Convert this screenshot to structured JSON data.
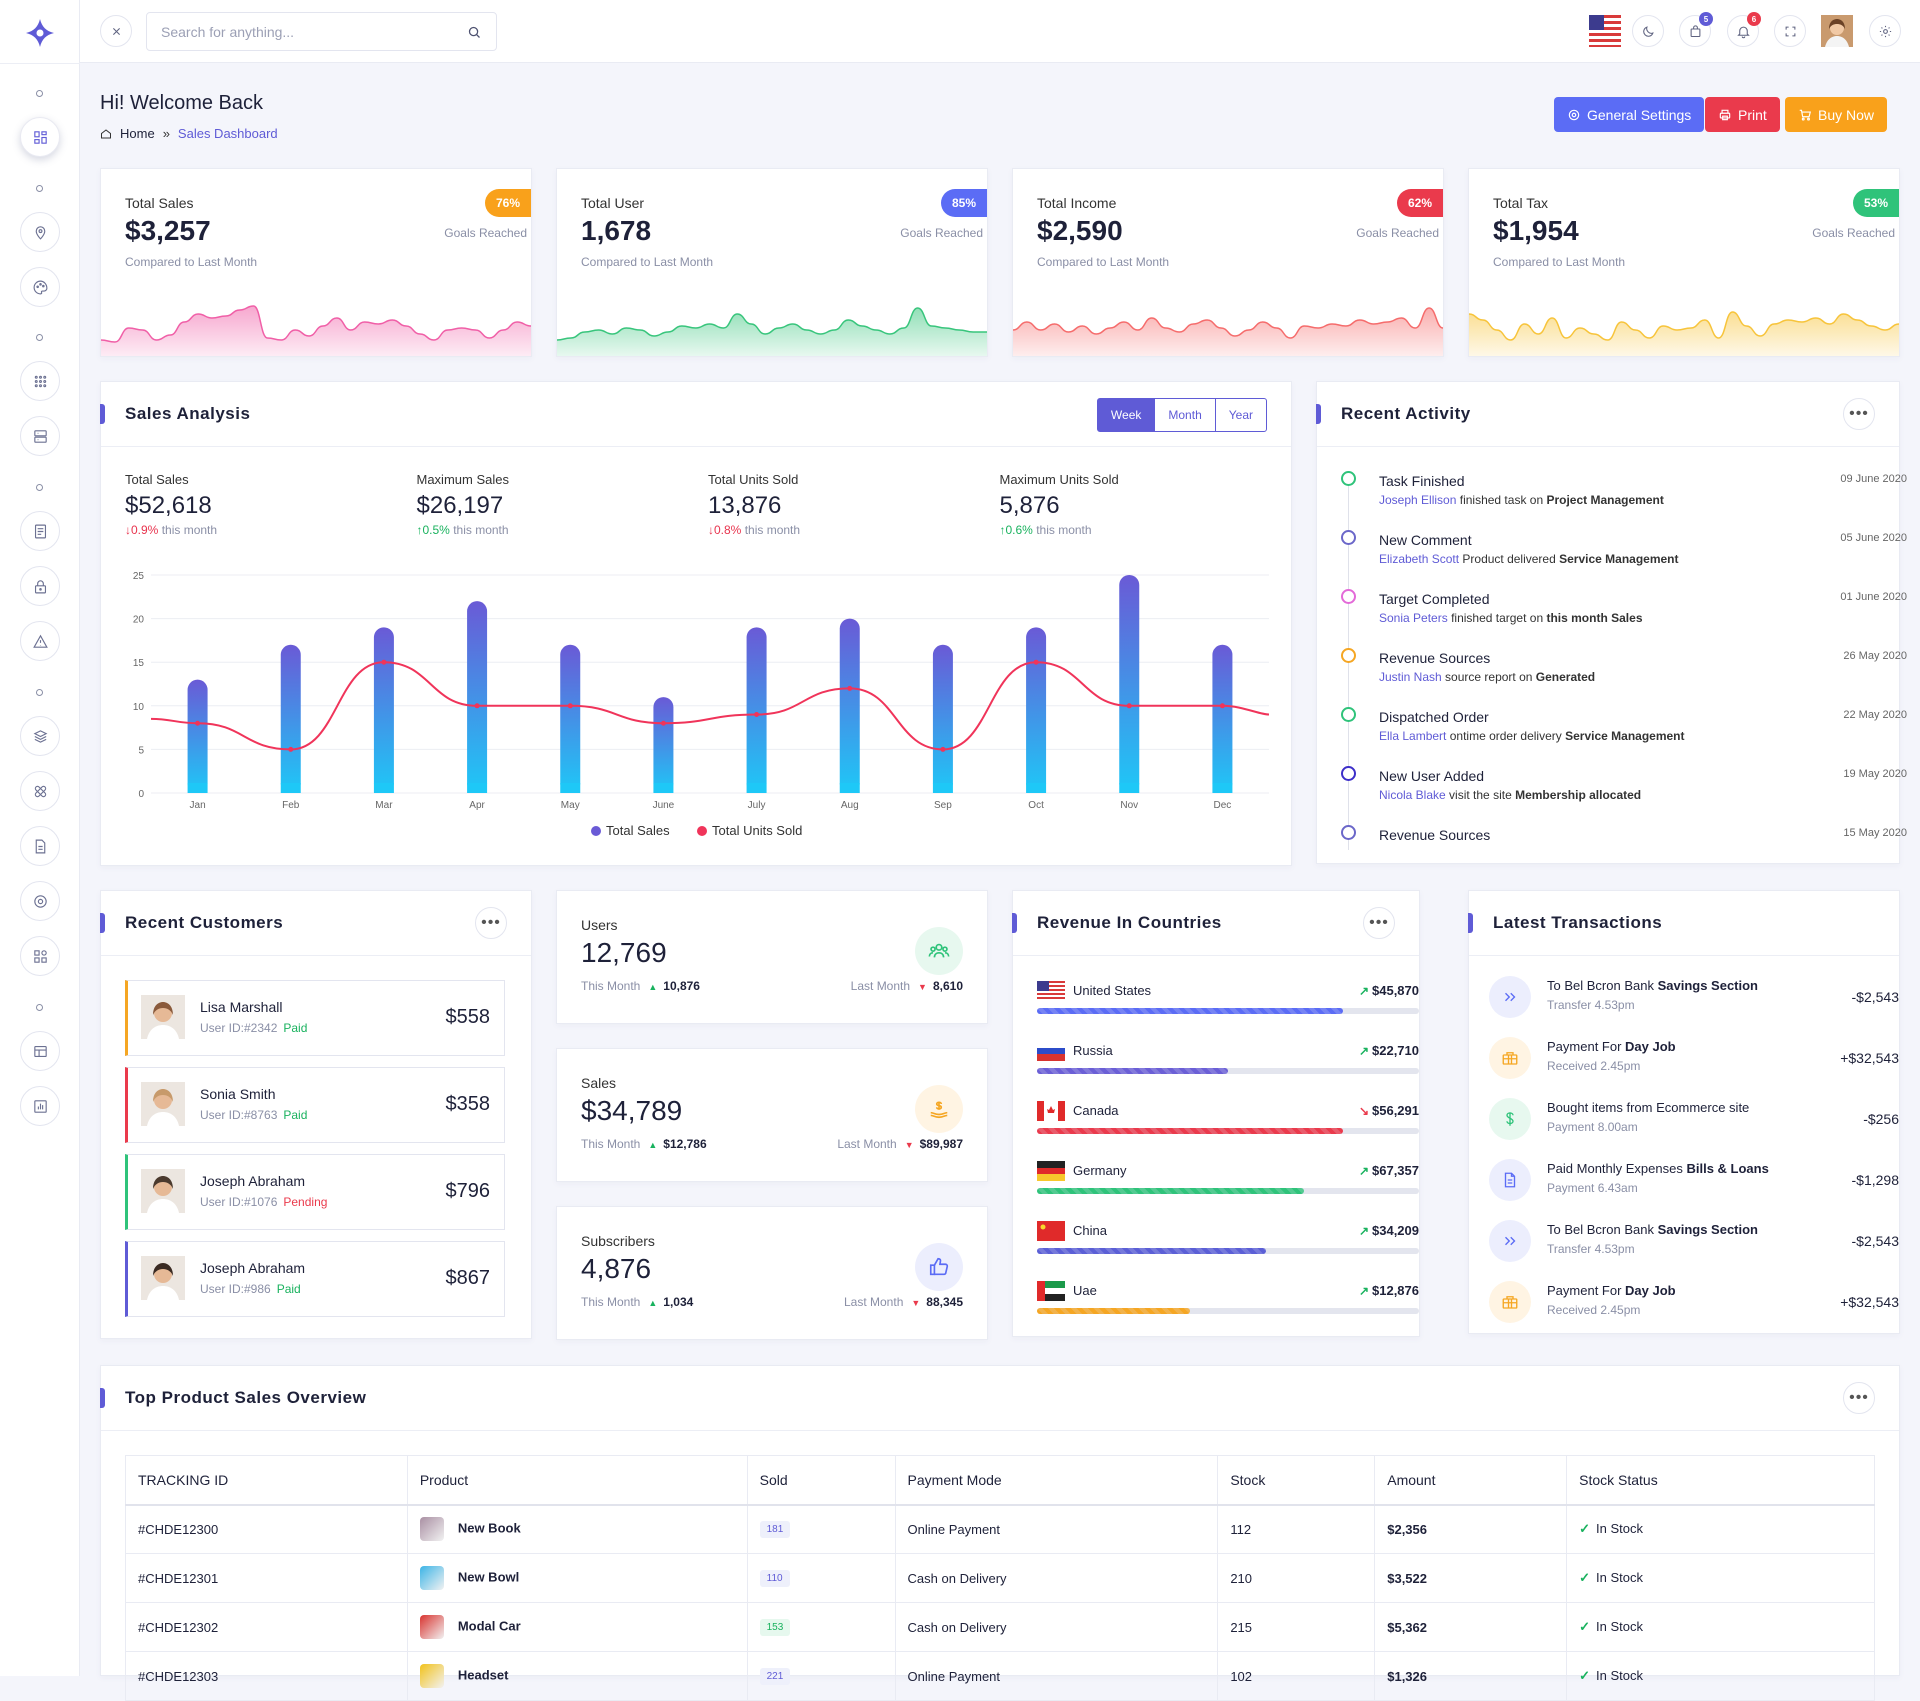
{
  "header": {
    "search_placeholder": "Search for anything...",
    "cart_count": "5",
    "notif_count": "6"
  },
  "page": {
    "title": "Hi! Welcome Back",
    "crumb_home": "Home",
    "crumb_sep": "»",
    "crumb_current": "Sales Dashboard",
    "btn_settings": "General Settings",
    "btn_print": "Print",
    "btn_buy": "Buy Now"
  },
  "stats": [
    {
      "title": "Total Sales",
      "value": "$3,257",
      "sub": "Compared to Last Month",
      "pct": "76%",
      "goal": "Goals Reached",
      "color": "#f9a11b",
      "fill": "#f05fa7"
    },
    {
      "title": "Total User",
      "value": "1,678",
      "sub": "Compared to Last Month",
      "pct": "85%",
      "goal": "Goals Reached",
      "color": "#5b6cf5",
      "fill": "#38c57c"
    },
    {
      "title": "Total Income",
      "value": "$2,590",
      "sub": "Compared to Last Month",
      "pct": "62%",
      "goal": "Goals Reached",
      "color": "#ea3a4c",
      "fill": "#f56c6c"
    },
    {
      "title": "Total Tax",
      "value": "$1,954",
      "sub": "Compared to Last Month",
      "pct": "53%",
      "goal": "Goals Reached",
      "color": "#2fc37a",
      "fill": "#f7c43b"
    }
  ],
  "sales_analysis": {
    "title": "Sales Analysis",
    "periods": [
      "Week",
      "Month",
      "Year"
    ],
    "metrics": [
      {
        "label": "Total Sales",
        "value": "$52,618",
        "delta": "0.9%",
        "dir": "down",
        "note": "this month"
      },
      {
        "label": "Maximum Sales",
        "value": "$26,197",
        "delta": "0.5%",
        "dir": "up",
        "note": "this month"
      },
      {
        "label": "Total Units Sold",
        "value": "13,876",
        "delta": "0.8%",
        "dir": "down",
        "note": "this month"
      },
      {
        "label": "Maximum Units Sold",
        "value": "5,876",
        "delta": "0.6%",
        "dir": "up",
        "note": "this month"
      }
    ]
  },
  "chart_data": {
    "type": "bar",
    "categories": [
      "Jan",
      "Feb",
      "Mar",
      "Apr",
      "May",
      "June",
      "July",
      "Aug",
      "Sep",
      "Oct",
      "Nov",
      "Dec"
    ],
    "series": [
      {
        "name": "Total Sales",
        "type": "bar",
        "values": [
          13,
          17,
          19,
          22,
          17,
          11,
          19,
          20,
          17,
          19,
          25,
          17
        ]
      },
      {
        "name": "Total Units Sold",
        "type": "line",
        "values": [
          8,
          5,
          15,
          10,
          10,
          8,
          9,
          12,
          5,
          15,
          10,
          10
        ]
      }
    ],
    "ylim": [
      0,
      25
    ],
    "yticks": [
      0,
      5,
      10,
      15,
      20,
      25
    ],
    "grid": true,
    "legend": "bottom",
    "colors": {
      "bar_top": "#6a5ad6",
      "bar_bottom": "#1ec8f7",
      "line": "#f0345a"
    }
  },
  "recent_activity": {
    "title": "Recent Activity",
    "items": [
      {
        "title": "Task Finished",
        "name": "Joseph Ellison",
        "text": "finished task on",
        "bold": "Project Management",
        "date": "09 June 2020",
        "color": "#2fc37a"
      },
      {
        "title": "New Comment",
        "name": "Elizabeth Scott",
        "text": "Product delivered",
        "bold": "Service Management",
        "date": "05 June 2020",
        "color": "#6b67c9"
      },
      {
        "title": "Target Completed",
        "name": "Sonia Peters",
        "text": "finished target on",
        "bold": "this month Sales",
        "date": "01 June 2020",
        "color": "#e36ad8"
      },
      {
        "title": "Revenue Sources",
        "name": "Justin Nash",
        "text": "source report on",
        "bold": "Generated",
        "date": "26 May 2020",
        "color": "#f5a623"
      },
      {
        "title": "Dispatched Order",
        "name": "Ella Lambert",
        "text": "ontime order delivery",
        "bold": "Service Management",
        "date": "22 May 2020",
        "color": "#2fc37a"
      },
      {
        "title": "New User Added",
        "name": "Nicola Blake",
        "text": "visit the site",
        "bold": "Membership allocated",
        "date": "19 May 2020",
        "color": "#3d2fc9"
      },
      {
        "title": "Revenue Sources",
        "name": "",
        "text": "",
        "bold": "",
        "date": "15 May 2020",
        "color": "#6b67c9"
      }
    ]
  },
  "recent_customers": {
    "title": "Recent Customers",
    "items": [
      {
        "name": "Lisa Marshall",
        "id": "User ID:#2342",
        "status": "Paid",
        "amount": "$558",
        "border": "#f5a623",
        "status_color": "#19b25e",
        "avatar": "#8a5a3b"
      },
      {
        "name": "Sonia Smith",
        "id": "User ID:#8763",
        "status": "Paid",
        "amount": "$358",
        "border": "#ea3a4c",
        "status_color": "#19b25e",
        "avatar": "#c79a6b"
      },
      {
        "name": "Joseph Abraham",
        "id": "User ID:#1076",
        "status": "Pending",
        "amount": "$796",
        "border": "#2fc37a",
        "status_color": "#ea3a4c",
        "avatar": "#4b3a2e"
      },
      {
        "name": "Joseph Abraham",
        "id": "User ID:#986",
        "status": "Paid",
        "amount": "$867",
        "border": "#5f5bd6",
        "status_color": "#19b25e",
        "avatar": "#3a2a22"
      }
    ]
  },
  "mini_stats": [
    {
      "label": "Users",
      "value": "12,769",
      "this_label": "This Month",
      "this_value": "10,876",
      "last_label": "Last Month",
      "last_value": "8,610",
      "icon": "users-icon",
      "tint": "#e7f8ef",
      "stroke": "#2fc37a"
    },
    {
      "label": "Sales",
      "value": "$34,789",
      "this_label": "This Month",
      "this_value": "$12,786",
      "last_label": "Last Month",
      "last_value": "$89,987",
      "icon": "money-hand-icon",
      "tint": "#fff4e3",
      "stroke": "#f5a623"
    },
    {
      "label": "Subscribers",
      "value": "4,876",
      "this_label": "This Month",
      "this_value": "1,034",
      "last_label": "Last Month",
      "last_value": "88,345",
      "icon": "thumbs-up-icon",
      "tint": "#eceefd",
      "stroke": "#5b6cf5"
    }
  ],
  "revenue_countries": {
    "title": "Revenue In Countries",
    "items": [
      {
        "country": "United States",
        "value": "$45,870",
        "trend": "up",
        "pct": 0.8,
        "color": "#5b6cf5"
      },
      {
        "country": "Russia",
        "value": "$22,710",
        "trend": "up",
        "pct": 0.5,
        "color": "#6b5fd6"
      },
      {
        "country": "Canada",
        "value": "$56,291",
        "trend": "down",
        "pct": 0.8,
        "color": "#ea3a4c"
      },
      {
        "country": "Germany",
        "value": "$67,357",
        "trend": "up",
        "pct": 0.7,
        "color": "#2fc37a"
      },
      {
        "country": "China",
        "value": "$34,209",
        "trend": "up",
        "pct": 0.6,
        "color": "#5b5fd6"
      },
      {
        "country": "Uae",
        "value": "$12,876",
        "trend": "up",
        "pct": 0.4,
        "color": "#f5a623"
      }
    ]
  },
  "transactions": {
    "title": "Latest Transactions",
    "items": [
      {
        "title": "To Bel Bcron Bank",
        "bold": "Savings Section",
        "sub": "Transfer 4.53pm",
        "amount": "-$2,543",
        "icon": "double-chevron-icon",
        "tint": "#eceefd",
        "stroke": "#5b6cf5"
      },
      {
        "title": "Payment For",
        "bold": "Day Job",
        "sub": "Received 2.45pm",
        "amount": "+$32,543",
        "icon": "briefcase-icon",
        "tint": "#fff4e3",
        "stroke": "#f5a623"
      },
      {
        "title": "Bought items from Ecommerce site",
        "bold": "",
        "sub": "Payment 8.00am",
        "amount": "-$256",
        "icon": "dollar-icon",
        "tint": "#e7f8ef",
        "stroke": "#2fc37a"
      },
      {
        "title": "Paid Monthly Expenses",
        "bold": "Bills & Loans",
        "sub": "Payment 6.43am",
        "amount": "-$1,298",
        "icon": "document-icon",
        "tint": "#eceefd",
        "stroke": "#5b6cf5"
      },
      {
        "title": "To Bel Bcron Bank",
        "bold": "Savings Section",
        "sub": "Transfer 4.53pm",
        "amount": "-$2,543",
        "icon": "double-chevron-icon",
        "tint": "#eceefd",
        "stroke": "#5b6cf5"
      },
      {
        "title": "Payment For",
        "bold": "Day Job",
        "sub": "Received 2.45pm",
        "amount": "+$32,543",
        "icon": "briefcase-icon",
        "tint": "#fff4e3",
        "stroke": "#f5a623"
      }
    ]
  },
  "products": {
    "title": "Top Product Sales Overview",
    "columns": [
      "TRACKING ID",
      "Product",
      "Sold",
      "Payment Mode",
      "Stock",
      "Amount",
      "Stock Status"
    ],
    "rows": [
      {
        "id": "#CHDE12300",
        "product": "New Book",
        "sold": "181",
        "mode": "Online Payment",
        "stock": "112",
        "amount": "$2,356",
        "status": "In Stock",
        "img": "#a98fa3"
      },
      {
        "id": "#CHDE12301",
        "product": "New Bowl",
        "sold": "110",
        "mode": "Cash on Delivery",
        "stock": "210",
        "amount": "$3,522",
        "status": "In Stock",
        "img": "#3cb4e6"
      },
      {
        "id": "#CHDE12302",
        "product": "Modal Car",
        "sold": "153",
        "mode": "Cash on Delivery",
        "stock": "215",
        "amount": "$5,362",
        "status": "In Stock",
        "img": "#d8332f"
      },
      {
        "id": "#CHDE12303",
        "product": "Headset",
        "sold": "221",
        "mode": "Online Payment",
        "stock": "102",
        "amount": "$1,326",
        "status": "In Stock",
        "img": "#f2c21a"
      }
    ]
  }
}
